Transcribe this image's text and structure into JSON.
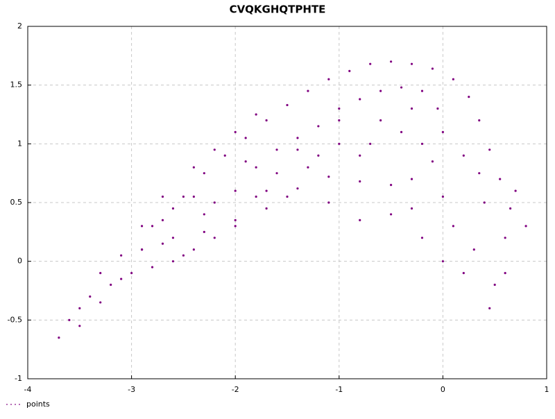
{
  "chart_data": {
    "type": "scatter",
    "title": "CVQKGHQTPHTE",
    "x": [
      -3.7,
      -3.5,
      -3.3,
      -3.1,
      -2.9,
      -2.7,
      -2.5,
      -2.3,
      -2.1,
      -1.9,
      -1.7,
      -1.5,
      -1.3,
      -1.1,
      -0.9,
      -0.7,
      -0.5,
      -0.3,
      -0.1,
      0.1,
      0.25,
      0.35,
      0.45,
      0.55,
      0.65,
      -3.2,
      -3.0,
      -2.8,
      -2.6,
      -2.4,
      -2.2,
      -2.0,
      -1.8,
      -1.6,
      -1.4,
      -1.2,
      -1.0,
      -0.8,
      -0.6,
      -0.4,
      -0.2,
      -0.05,
      0.0,
      -0.1,
      -0.3,
      -0.5,
      -0.8,
      -1.1,
      -1.4,
      -1.7,
      -2.0,
      -2.3,
      -2.6,
      -2.9,
      -2.8,
      -2.6,
      -2.4,
      -2.2,
      -2.0,
      -1.8,
      -1.6,
      -1.4,
      -1.2,
      -1.0,
      -0.8,
      -0.6,
      -0.4,
      -0.2,
      -0.3,
      -1.3,
      -1.5,
      -1.7,
      -2.5,
      -2.7,
      -2.3,
      -1.9,
      -1.0,
      -0.7,
      0.2,
      0.4,
      0.6,
      0.5,
      0.3,
      0.1,
      0.7,
      0.2,
      0.0,
      -0.2,
      -0.5,
      -0.8,
      -1.1,
      0.45,
      0.6,
      0.8,
      0.0,
      -0.3,
      0.35,
      -3.4,
      -3.5,
      -3.6,
      -3.3,
      -3.1,
      -2.9,
      -2.7,
      -2.4,
      -2.2,
      -2.0,
      -1.8
    ],
    "series": [
      {
        "name": "points",
        "color": "#800080",
        "values": [
          -0.65,
          -0.55,
          -0.35,
          -0.15,
          0.1,
          0.35,
          0.55,
          0.75,
          0.9,
          1.05,
          1.2,
          1.33,
          1.45,
          1.55,
          1.62,
          1.68,
          1.7,
          1.68,
          1.64,
          1.55,
          1.4,
          1.2,
          0.95,
          0.7,
          0.45,
          -0.2,
          -0.1,
          -0.05,
          0.0,
          0.1,
          0.2,
          0.35,
          0.55,
          0.75,
          0.95,
          1.15,
          1.3,
          1.38,
          1.45,
          1.48,
          1.45,
          1.3,
          1.1,
          0.85,
          0.7,
          0.65,
          0.68,
          0.72,
          0.62,
          0.45,
          0.3,
          0.25,
          0.2,
          0.1,
          0.3,
          0.45,
          0.55,
          0.5,
          0.6,
          0.8,
          0.95,
          1.05,
          0.9,
          1.0,
          0.9,
          1.2,
          1.1,
          1.0,
          1.3,
          0.8,
          0.55,
          0.6,
          0.05,
          0.15,
          0.4,
          0.85,
          1.2,
          1.0,
          0.9,
          0.5,
          0.2,
          -0.2,
          0.1,
          0.3,
          0.6,
          -0.1,
          0.0,
          0.2,
          0.4,
          0.35,
          0.5,
          -0.4,
          -0.1,
          0.3,
          0.55,
          0.45,
          0.75,
          -0.3,
          -0.4,
          -0.5,
          -0.1,
          0.05,
          0.3,
          0.55,
          0.8,
          0.95,
          1.1,
          1.25
        ]
      }
    ],
    "xlim": [
      -4,
      1
    ],
    "xticks": [
      -4,
      -3,
      -2,
      -1,
      0,
      1
    ],
    "ylim": [
      -1,
      2
    ],
    "yticks": [
      -1,
      -0.5,
      0,
      0.5,
      1,
      1.5,
      2
    ],
    "grid": true,
    "legend": "bottom-left"
  }
}
